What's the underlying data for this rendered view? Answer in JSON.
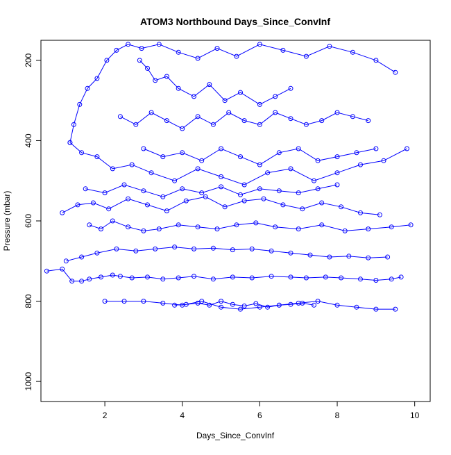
{
  "chart_data": {
    "type": "line",
    "title": "ATOM3 Northbound Days_Since_ConvInf",
    "xlabel": "Days_Since_ConvInf",
    "ylabel": "Pressure (mbar)",
    "xlim": [
      0.35,
      10.4
    ],
    "ylim": [
      1050,
      150
    ],
    "y_reversed": true,
    "x_ticks": [
      2,
      4,
      6,
      8,
      10
    ],
    "y_ticks": [
      200,
      400,
      600,
      800,
      1000
    ],
    "x_tick_labels": [
      "2",
      "4",
      "6",
      "8",
      "10"
    ],
    "y_tick_labels": [
      "200",
      "400",
      "600",
      "800",
      "1000"
    ],
    "grid": false,
    "legend": "none",
    "series_color": "#0000ff",
    "marker": "open-circle",
    "series": [
      {
        "x": [
          0.5,
          0.9,
          1.15,
          1.4,
          1.6,
          1.9,
          2.2,
          2.4,
          2.7,
          3.1,
          3.5,
          3.9,
          4.3,
          4.8,
          5.3,
          5.8,
          6.3,
          6.8,
          7.2,
          7.7,
          8.1,
          8.6,
          9.0,
          9.4,
          9.65
        ],
        "y": [
          725,
          720,
          750,
          750,
          745,
          740,
          735,
          738,
          742,
          740,
          745,
          742,
          738,
          745,
          740,
          742,
          738,
          740,
          742,
          740,
          742,
          745,
          748,
          745,
          740
        ]
      },
      {
        "x": [
          1.1,
          1.2,
          1.35,
          1.55,
          1.8,
          2.05,
          2.3,
          2.6,
          2.95,
          3.4,
          3.9,
          4.4,
          4.9,
          5.4,
          6.0,
          6.6,
          7.2,
          7.8,
          8.4,
          9.0,
          9.5
        ],
        "y": [
          405,
          360,
          310,
          270,
          245,
          200,
          175,
          160,
          170,
          160,
          180,
          195,
          170,
          190,
          160,
          175,
          190,
          165,
          180,
          200,
          230
        ]
      },
      {
        "x": [
          1.1,
          1.4,
          1.8,
          2.2,
          2.7,
          3.2,
          3.8,
          4.4,
          5.0,
          5.6,
          6.2,
          6.8,
          7.4,
          8.0,
          8.6,
          9.2,
          9.8
        ],
        "y": [
          405,
          430,
          440,
          470,
          460,
          480,
          500,
          470,
          490,
          510,
          480,
          470,
          500,
          480,
          460,
          450,
          420
        ]
      },
      {
        "x": [
          2.9,
          3.1,
          3.3,
          3.6,
          3.9,
          4.3,
          4.7,
          5.1,
          5.5,
          6.0,
          6.4,
          6.8
        ],
        "y": [
          200,
          220,
          250,
          240,
          270,
          290,
          260,
          300,
          280,
          310,
          290,
          270
        ]
      },
      {
        "x": [
          1.6,
          1.9,
          2.2,
          2.6,
          3.0,
          3.4,
          3.9,
          4.4,
          4.9,
          5.4,
          5.9,
          6.4,
          7.0,
          7.6,
          8.2,
          8.8,
          9.4,
          9.9
        ],
        "y": [
          610,
          620,
          600,
          615,
          625,
          620,
          610,
          615,
          620,
          610,
          605,
          615,
          620,
          610,
          625,
          620,
          615,
          610
        ]
      },
      {
        "x": [
          1.0,
          1.4,
          1.8,
          2.3,
          2.8,
          3.3,
          3.8,
          4.3,
          4.8,
          5.3,
          5.8,
          6.3,
          6.8,
          7.3,
          7.8,
          8.3,
          8.8,
          9.3
        ],
        "y": [
          700,
          690,
          680,
          670,
          675,
          670,
          665,
          670,
          668,
          672,
          670,
          675,
          680,
          685,
          690,
          688,
          692,
          690
        ]
      },
      {
        "x": [
          2.0,
          2.5,
          3.0,
          3.5,
          4.0,
          4.5,
          5.0,
          5.5,
          6.0,
          6.5,
          7.0,
          7.5,
          8.0,
          8.5,
          9.0,
          9.5
        ],
        "y": [
          800,
          800,
          800,
          805,
          810,
          800,
          815,
          820,
          815,
          810,
          805,
          800,
          810,
          815,
          820,
          820
        ]
      },
      {
        "x": [
          3.8,
          4.1,
          4.4,
          4.7,
          5.0,
          5.3,
          5.6,
          5.9,
          6.2,
          6.5,
          6.8,
          7.1,
          7.4
        ],
        "y": [
          810,
          808,
          805,
          810,
          800,
          808,
          812,
          806,
          815,
          810,
          808,
          805,
          810
        ]
      },
      {
        "x": [
          0.9,
          1.3,
          1.7,
          2.1,
          2.6,
          3.1,
          3.6,
          4.1,
          4.6,
          5.1,
          5.6,
          6.1,
          6.6,
          7.1,
          7.6,
          8.1,
          8.6,
          9.1
        ],
        "y": [
          580,
          560,
          555,
          570,
          545,
          560,
          575,
          550,
          540,
          565,
          550,
          545,
          560,
          570,
          555,
          565,
          580,
          585
        ]
      },
      {
        "x": [
          2.4,
          2.8,
          3.2,
          3.6,
          4.0,
          4.4,
          4.8,
          5.2,
          5.6,
          6.0,
          6.4,
          6.8,
          7.2,
          7.6,
          8.0,
          8.4,
          8.8
        ],
        "y": [
          340,
          360,
          330,
          350,
          370,
          340,
          360,
          330,
          350,
          360,
          330,
          345,
          360,
          350,
          330,
          340,
          350
        ]
      },
      {
        "x": [
          3.0,
          3.5,
          4.0,
          4.5,
          5.0,
          5.5,
          6.0,
          6.5,
          7.0,
          7.5,
          8.0,
          8.5,
          9.0
        ],
        "y": [
          420,
          440,
          430,
          450,
          420,
          440,
          460,
          430,
          420,
          450,
          440,
          430,
          420
        ]
      },
      {
        "x": [
          1.5,
          2.0,
          2.5,
          3.0,
          3.5,
          4.0,
          4.5,
          5.0,
          5.5,
          6.0,
          6.5,
          7.0,
          7.5,
          8.0
        ],
        "y": [
          520,
          530,
          510,
          525,
          540,
          520,
          530,
          515,
          535,
          520,
          525,
          530,
          520,
          510
        ]
      }
    ]
  }
}
